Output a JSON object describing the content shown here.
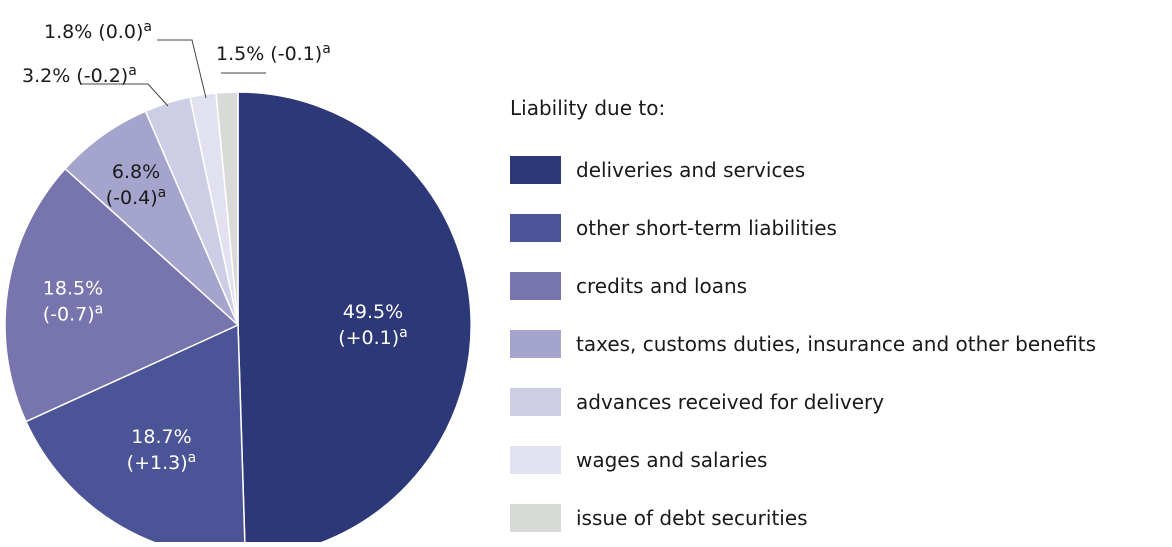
{
  "chart_data": {
    "type": "pie",
    "legend_title": "Liability due to:",
    "slices": [
      {
        "name": "deliveries and services",
        "value": 49.5,
        "change": "+0.1",
        "color": "#2d3878",
        "label_line1": "49.5%",
        "label_line2": "(+0.1)",
        "sup": "a",
        "label_inside": true
      },
      {
        "name": "other short-term liabilities",
        "value": 18.7,
        "change": "+1.3",
        "color": "#4b5496",
        "label_line1": "18.7%",
        "label_line2": "(+1.3)",
        "sup": "a",
        "label_inside": true
      },
      {
        "name": "credits and loans",
        "value": 18.5,
        "change": "-0.7",
        "color": "#7774ae",
        "label_line1": "18.5%",
        "label_line2": "(-0.7)",
        "sup": "a",
        "label_inside": true
      },
      {
        "name": "taxes, customs duties, insurance and other benefits",
        "value": 6.8,
        "change": "-0.4",
        "color": "#a5a4cd",
        "label_line1": "6.8%",
        "label_line2": "(-0.4)",
        "sup": "a",
        "label_inside": true
      },
      {
        "name": "advances received for delivery",
        "value": 3.2,
        "change": "-0.2",
        "color": "#cdcde5",
        "label_line1": "3.2% (-0.2)",
        "sup": "a",
        "label_inside": false
      },
      {
        "name": "wages and salaries",
        "value": 1.8,
        "change": "0.0",
        "color": "#e1e1f0",
        "label_line1": "1.8% (0.0)",
        "sup": "a",
        "label_inside": false
      },
      {
        "name": "issue of debt securities",
        "value": 1.5,
        "change": "-0.1",
        "color": "#d8dad8",
        "label_line1": "1.5% (-0.1)",
        "sup": "a",
        "label_inside": false
      }
    ]
  }
}
